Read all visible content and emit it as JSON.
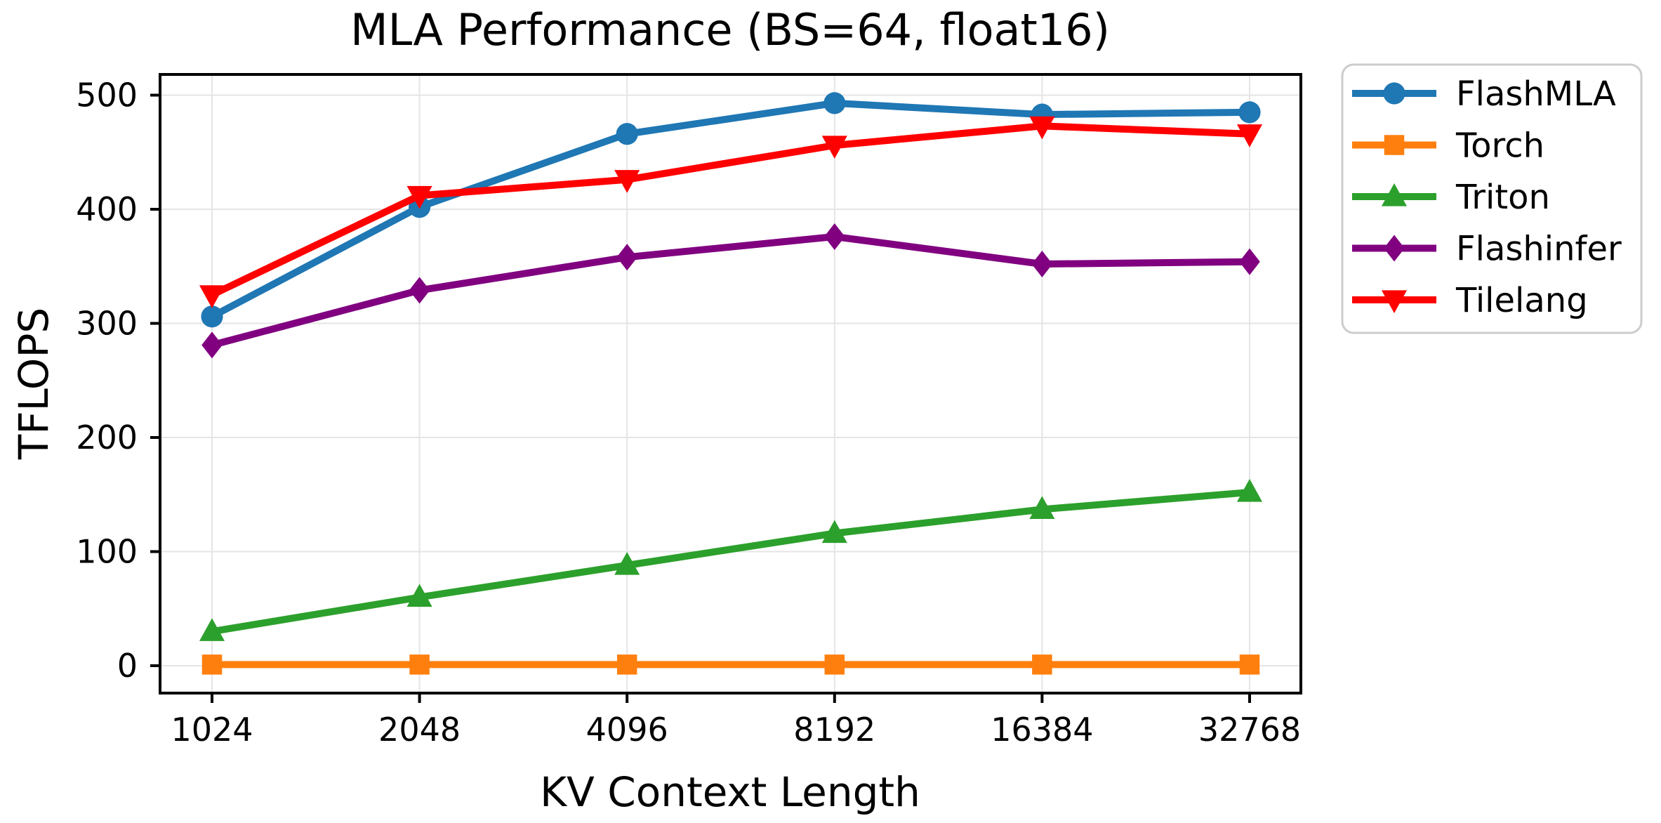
{
  "figure": {
    "background": "#ffffff",
    "grid_color": "#e5e5e5",
    "spine_color": "#000000",
    "legend_border_color": "#cccccc"
  },
  "chart_data": {
    "type": "line",
    "title": "MLA Performance (BS=64, float16)",
    "xlabel": "KV Context Length",
    "ylabel": "TFLOPS",
    "categories": [
      "1024",
      "2048",
      "4096",
      "8192",
      "16384",
      "32768"
    ],
    "y_ticks": [
      0,
      100,
      200,
      300,
      400,
      500
    ],
    "ylim": [
      -24,
      518
    ],
    "grid": true,
    "legend_position": "outside-top-right",
    "series": [
      {
        "name": "FlashMLA",
        "color": "#1f77b4",
        "marker": "circle",
        "values": [
          306,
          402,
          466,
          493,
          483,
          485
        ]
      },
      {
        "name": "Torch",
        "color": "#ff7f0e",
        "marker": "square",
        "values": [
          1,
          1,
          1,
          1,
          1,
          1
        ]
      },
      {
        "name": "Triton",
        "color": "#2ca02c",
        "marker": "triangle-up",
        "values": [
          30,
          60,
          88,
          116,
          137,
          152
        ]
      },
      {
        "name": "Flashinfer",
        "color": "#800080",
        "marker": "diamond",
        "values": [
          281,
          329,
          358,
          376,
          352,
          354
        ]
      },
      {
        "name": "Tilelang",
        "color": "#ff0000",
        "marker": "triangle-down",
        "values": [
          325,
          412,
          426,
          456,
          473,
          466
        ]
      }
    ]
  }
}
